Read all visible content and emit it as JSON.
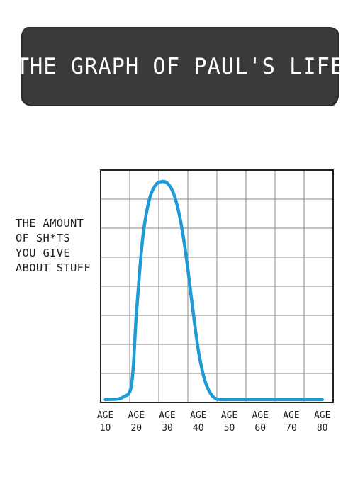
{
  "chart_data": {
    "type": "line",
    "title": "THE GRAPH OF PAUL'S LIFE",
    "ylabel": [
      "THE AMOUNT",
      "OF SH*TS",
      "YOU GIVE",
      "ABOUT STUFF"
    ],
    "xlabel": "",
    "tick_prefix": "AGE",
    "x_ticks": [
      10,
      20,
      30,
      40,
      50,
      60,
      70,
      80
    ],
    "xlim": [
      8.5,
      83.5
    ],
    "ylim": [
      0,
      8
    ],
    "grid": true,
    "series": [
      {
        "color": "#1e9ad6",
        "x": [
          10,
          14,
          16,
          18,
          19,
          20,
          22,
          24,
          26,
          28,
          30,
          32,
          34,
          36,
          38,
          40,
          42,
          44,
          46,
          48,
          50,
          52,
          55,
          60,
          70,
          80
        ],
        "y": [
          0.1,
          0.12,
          0.2,
          0.4,
          1.2,
          3.0,
          5.6,
          6.9,
          7.45,
          7.6,
          7.55,
          7.2,
          6.4,
          5.1,
          3.4,
          1.8,
          0.8,
          0.3,
          0.12,
          0.1,
          0.1,
          0.1,
          0.1,
          0.1,
          0.1,
          0.1
        ]
      }
    ]
  }
}
